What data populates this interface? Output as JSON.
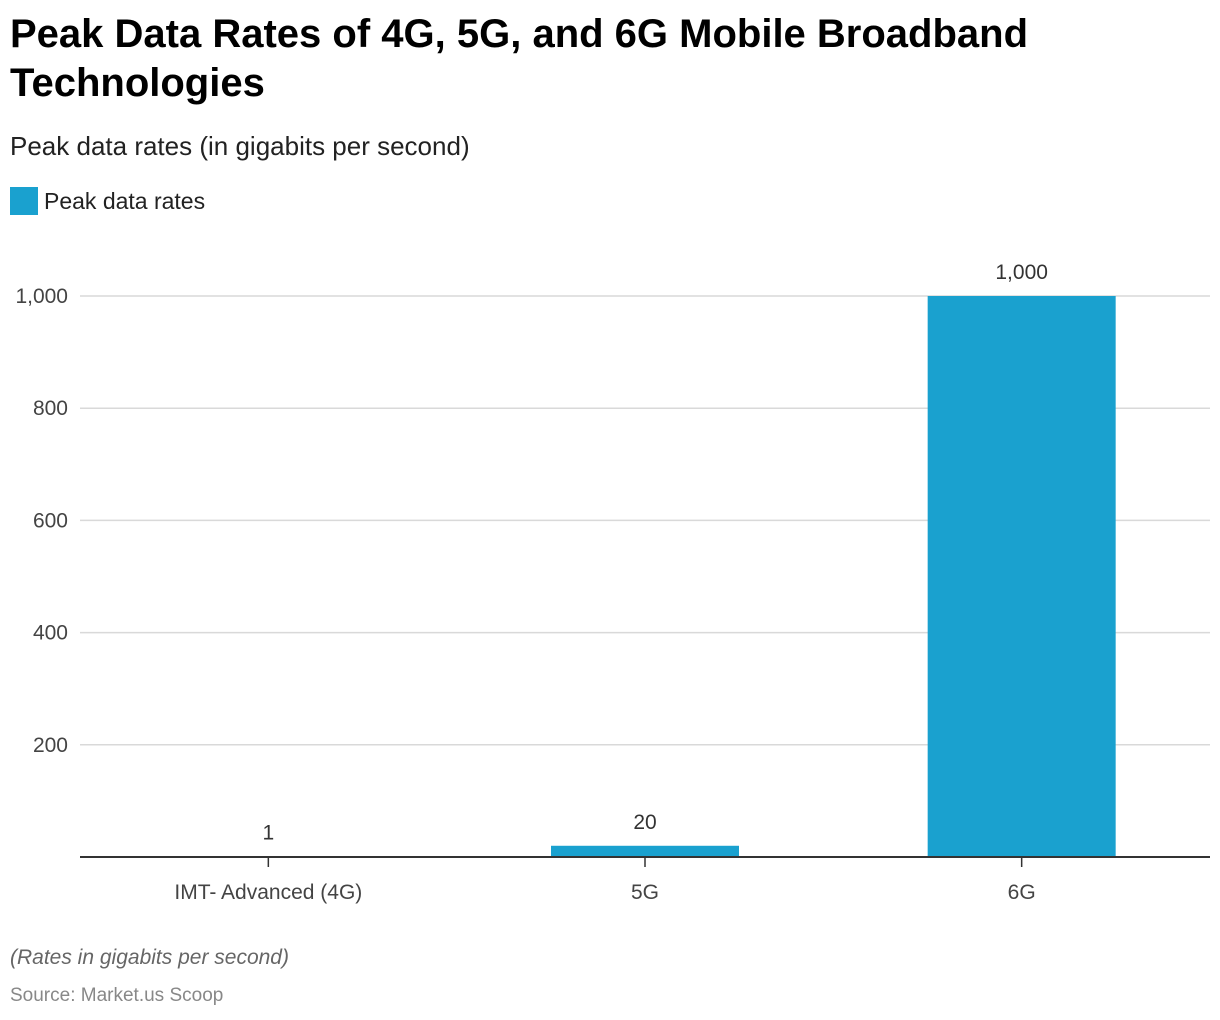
{
  "chart_data": {
    "type": "bar",
    "title": "Peak Data Rates of 4G, 5G, and 6G Mobile Broadband Technologies",
    "subtitle": "Peak data rates (in gigabits per second)",
    "categories": [
      "IMT- Advanced (4G)",
      "5G",
      "6G"
    ],
    "series": [
      {
        "name": "Peak data rates",
        "values": [
          1,
          20,
          1000
        ],
        "value_labels": [
          "1",
          "20",
          "1,000"
        ],
        "color": "#1aa1cf"
      }
    ],
    "yticks": [
      200,
      400,
      600,
      800,
      1000
    ],
    "ytick_labels": [
      "200",
      "400",
      "600",
      "800",
      "1,000"
    ],
    "ylim": [
      0,
      1000
    ],
    "grid": true,
    "legend_position": "top-left",
    "note": "(Rates in gigabits per second)",
    "source": "Source: Market.us Scoop"
  }
}
